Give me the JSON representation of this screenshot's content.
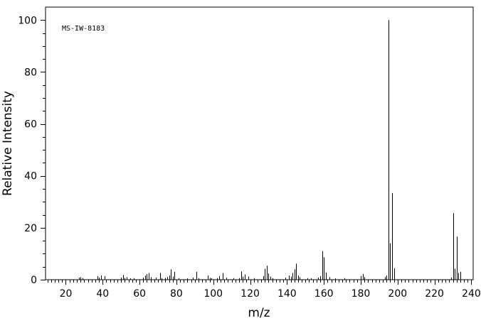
{
  "chart_data": {
    "type": "bar",
    "title": "",
    "annotation": "MS-IW-8183",
    "xlabel": "m/z",
    "ylabel": "Relative Intensity",
    "xlim": [
      9,
      241
    ],
    "ylim": [
      0,
      105
    ],
    "x_ticks": [
      20,
      40,
      60,
      80,
      100,
      120,
      140,
      160,
      180,
      200,
      220,
      240
    ],
    "y_ticks": [
      0,
      20,
      40,
      60,
      80,
      100
    ],
    "grid": false,
    "legend": "none",
    "bar_color": "#000000",
    "peaks": [
      {
        "mz": 27,
        "intensity": 0.8
      },
      {
        "mz": 28,
        "intensity": 1.0
      },
      {
        "mz": 29,
        "intensity": 0.6
      },
      {
        "mz": 37,
        "intensity": 1.4
      },
      {
        "mz": 38,
        "intensity": 0.8
      },
      {
        "mz": 39,
        "intensity": 1.6
      },
      {
        "mz": 41,
        "intensity": 1.4
      },
      {
        "mz": 50,
        "intensity": 0.8
      },
      {
        "mz": 51,
        "intensity": 1.8
      },
      {
        "mz": 52,
        "intensity": 0.7
      },
      {
        "mz": 53,
        "intensity": 1.0
      },
      {
        "mz": 55,
        "intensity": 0.5
      },
      {
        "mz": 57,
        "intensity": 0.6
      },
      {
        "mz": 62,
        "intensity": 0.8
      },
      {
        "mz": 63,
        "intensity": 1.6
      },
      {
        "mz": 64,
        "intensity": 2.2
      },
      {
        "mz": 65,
        "intensity": 2.6
      },
      {
        "mz": 66,
        "intensity": 1.0
      },
      {
        "mz": 69,
        "intensity": 0.8
      },
      {
        "mz": 71,
        "intensity": 2.6
      },
      {
        "mz": 72,
        "intensity": 0.6
      },
      {
        "mz": 74,
        "intensity": 0.7
      },
      {
        "mz": 75,
        "intensity": 1.0
      },
      {
        "mz": 76,
        "intensity": 1.6
      },
      {
        "mz": 77,
        "intensity": 4.0
      },
      {
        "mz": 78,
        "intensity": 1.2
      },
      {
        "mz": 79,
        "intensity": 3.0
      },
      {
        "mz": 81,
        "intensity": 0.6
      },
      {
        "mz": 86,
        "intensity": 0.5
      },
      {
        "mz": 89,
        "intensity": 0.8
      },
      {
        "mz": 91,
        "intensity": 3.0
      },
      {
        "mz": 92,
        "intensity": 0.6
      },
      {
        "mz": 97,
        "intensity": 1.6
      },
      {
        "mz": 98,
        "intensity": 0.7
      },
      {
        "mz": 99,
        "intensity": 0.6
      },
      {
        "mz": 102,
        "intensity": 0.6
      },
      {
        "mz": 103,
        "intensity": 1.4
      },
      {
        "mz": 105,
        "intensity": 2.6
      },
      {
        "mz": 107,
        "intensity": 0.8
      },
      {
        "mz": 111,
        "intensity": 0.6
      },
      {
        "mz": 114,
        "intensity": 0.6
      },
      {
        "mz": 115,
        "intensity": 3.2
      },
      {
        "mz": 116,
        "intensity": 1.2
      },
      {
        "mz": 117,
        "intensity": 2.0
      },
      {
        "mz": 119,
        "intensity": 1.2
      },
      {
        "mz": 122,
        "intensity": 0.6
      },
      {
        "mz": 127,
        "intensity": 1.4
      },
      {
        "mz": 128,
        "intensity": 4.2
      },
      {
        "mz": 129,
        "intensity": 5.4
      },
      {
        "mz": 130,
        "intensity": 2.4
      },
      {
        "mz": 131,
        "intensity": 1.2
      },
      {
        "mz": 132,
        "intensity": 0.6
      },
      {
        "mz": 139,
        "intensity": 0.8
      },
      {
        "mz": 141,
        "intensity": 1.6
      },
      {
        "mz": 142,
        "intensity": 1.2
      },
      {
        "mz": 143,
        "intensity": 2.6
      },
      {
        "mz": 144,
        "intensity": 4.0
      },
      {
        "mz": 145,
        "intensity": 6.2
      },
      {
        "mz": 146,
        "intensity": 1.6
      },
      {
        "mz": 147,
        "intensity": 1.0
      },
      {
        "mz": 151,
        "intensity": 0.6
      },
      {
        "mz": 153,
        "intensity": 0.6
      },
      {
        "mz": 157,
        "intensity": 0.8
      },
      {
        "mz": 158,
        "intensity": 1.4
      },
      {
        "mz": 159,
        "intensity": 11.0
      },
      {
        "mz": 160,
        "intensity": 8.6
      },
      {
        "mz": 161,
        "intensity": 2.8
      },
      {
        "mz": 163,
        "intensity": 1.0
      },
      {
        "mz": 166,
        "intensity": 0.5
      },
      {
        "mz": 171,
        "intensity": 0.6
      },
      {
        "mz": 180,
        "intensity": 1.4
      },
      {
        "mz": 181,
        "intensity": 2.2
      },
      {
        "mz": 182,
        "intensity": 1.0
      },
      {
        "mz": 193,
        "intensity": 1.0
      },
      {
        "mz": 194,
        "intensity": 1.6
      },
      {
        "mz": 195,
        "intensity": 100.0
      },
      {
        "mz": 196,
        "intensity": 14.0
      },
      {
        "mz": 197,
        "intensity": 33.4
      },
      {
        "mz": 198,
        "intensity": 4.4
      },
      {
        "mz": 229,
        "intensity": 0.8
      },
      {
        "mz": 230,
        "intensity": 25.6
      },
      {
        "mz": 231,
        "intensity": 4.2
      },
      {
        "mz": 232,
        "intensity": 16.6
      },
      {
        "mz": 233,
        "intensity": 2.6
      },
      {
        "mz": 234,
        "intensity": 3.0
      }
    ]
  }
}
